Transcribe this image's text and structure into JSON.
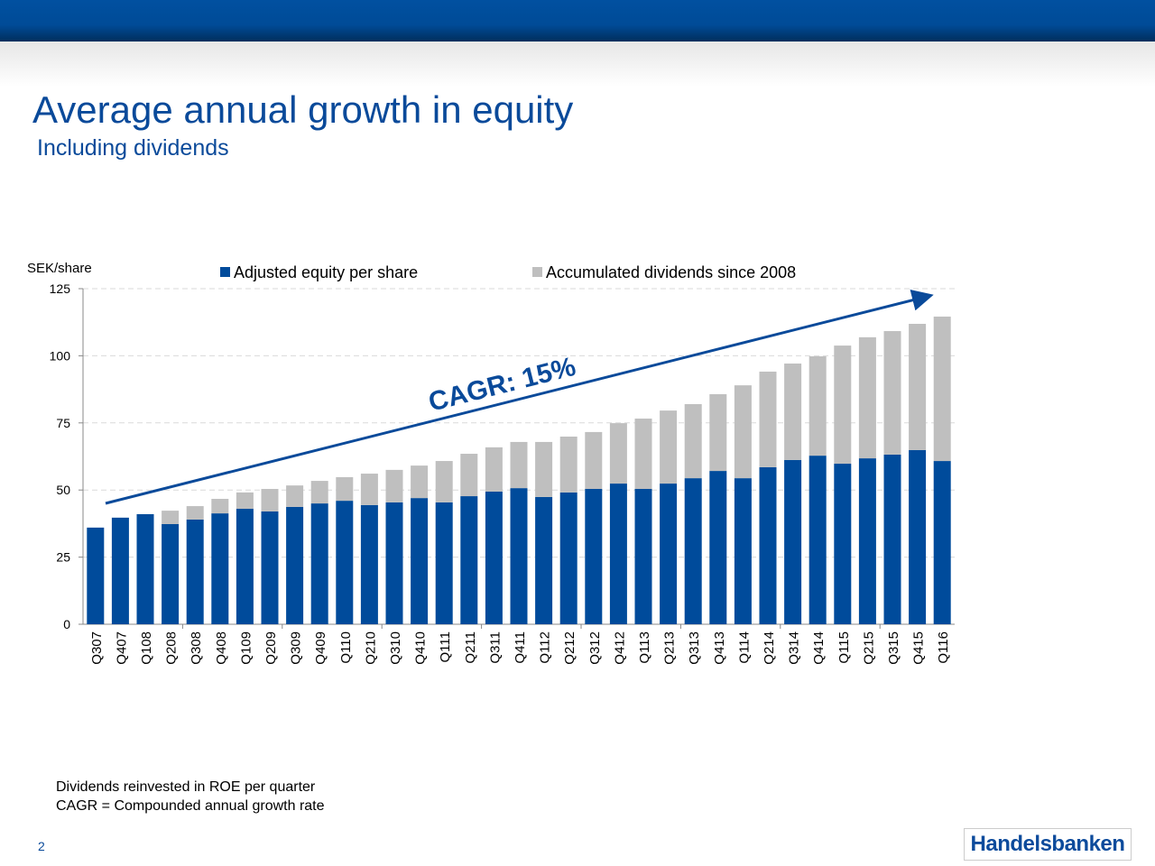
{
  "header": {
    "title": "Average annual growth in equity",
    "subtitle": "Including dividends"
  },
  "chart_data": {
    "type": "bar",
    "stacked": true,
    "ylabel": "SEK/share",
    "ylim": [
      0,
      125
    ],
    "yticks": [
      0,
      25,
      50,
      75,
      100,
      125
    ],
    "grid": true,
    "legend_placement": "top",
    "categories": [
      "Q307",
      "Q407",
      "Q108",
      "Q208",
      "Q308",
      "Q408",
      "Q109",
      "Q209",
      "Q309",
      "Q409",
      "Q110",
      "Q210",
      "Q310",
      "Q410",
      "Q111",
      "Q211",
      "Q311",
      "Q411",
      "Q112",
      "Q212",
      "Q312",
      "Q412",
      "Q113",
      "Q213",
      "Q313",
      "Q413",
      "Q114",
      "Q214",
      "Q314",
      "Q414",
      "Q115",
      "Q215",
      "Q315",
      "Q415",
      "Q116"
    ],
    "series": [
      {
        "name": "Adjusted equity per share",
        "color": "#004b9b",
        "values": [
          36.0,
          39.7,
          41.0,
          37.3,
          39.0,
          41.3,
          43.0,
          42.0,
          43.7,
          45.0,
          46.0,
          44.4,
          45.4,
          47.0,
          45.4,
          47.7,
          49.4,
          50.7,
          47.4,
          49.1,
          50.4,
          52.4,
          50.4,
          52.4,
          54.4,
          57.1,
          54.4,
          58.5,
          61.2,
          62.8,
          59.8,
          61.8,
          63.2,
          64.9,
          60.8
        ]
      },
      {
        "name": "Accumulated dividends since 2008",
        "color": "#bfbfbf",
        "values": [
          0,
          0,
          0,
          5.0,
          5.0,
          5.4,
          6.1,
          8.4,
          8.0,
          8.4,
          8.8,
          11.7,
          12.1,
          12.1,
          15.4,
          15.8,
          16.5,
          17.2,
          20.5,
          20.8,
          21.2,
          22.5,
          26.2,
          27.2,
          27.6,
          28.6,
          34.6,
          35.6,
          35.9,
          37.0,
          44.0,
          45.1,
          46.0,
          47.0,
          53.8
        ]
      }
    ],
    "annotation": {
      "text": "CAGR: 15%",
      "color": "#0a4a9a"
    }
  },
  "footer": {
    "notes": [
      "Dividends reinvested in ROE per quarter",
      "CAGR = Compounded annual growth rate"
    ],
    "page": "2",
    "logo": "Handelsbanken"
  }
}
